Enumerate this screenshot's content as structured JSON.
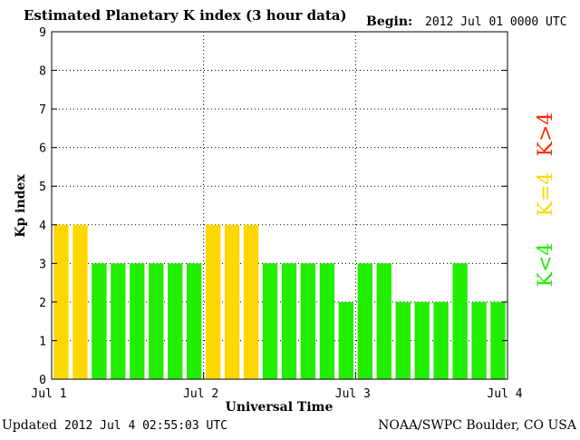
{
  "header": {
    "title": "Estimated Planetary K index (3 hour data)",
    "begin_label": "Begin:",
    "begin_value": "2012 Jul 01 0000 UTC"
  },
  "footer": {
    "updated_label": "Updated",
    "updated_value": "2012 Jul  4 02:55:03 UTC",
    "source": "NOAA/SWPC Boulder, CO USA"
  },
  "legend": [
    {
      "label": "K>4",
      "color": "#ff2a00"
    },
    {
      "label": "K=4",
      "color": "#ffd700"
    },
    {
      "label": "K<4",
      "color": "#22ee00"
    }
  ],
  "chart_data": {
    "type": "bar",
    "title": "Estimated Planetary K index (3 hour data)",
    "xlabel": "Universal Time",
    "ylabel": "Kp index",
    "ylim": [
      0,
      9
    ],
    "yticks": [
      0,
      1,
      2,
      3,
      4,
      5,
      6,
      7,
      8,
      9
    ],
    "xticks": [
      "Jul 1",
      "Jul 2",
      "Jul 3",
      "Jul 4"
    ],
    "interval_hours": 3,
    "values": [
      4,
      4,
      3,
      3,
      3,
      3,
      3,
      3,
      4,
      4,
      4,
      3,
      3,
      3,
      3,
      2,
      3,
      3,
      2,
      2,
      2,
      3,
      2,
      2
    ],
    "grid": true,
    "colors": {
      "below_4": "#22ee00",
      "equal_4": "#ffd700",
      "above_4": "#ff2a00"
    }
  }
}
